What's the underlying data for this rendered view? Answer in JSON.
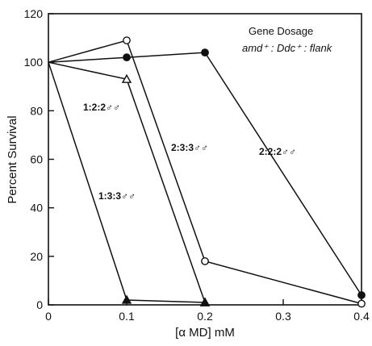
{
  "chart_data": {
    "type": "line",
    "title": "",
    "xlabel": "[α MD] mM",
    "ylabel": "Percent Survival",
    "xlim": [
      0,
      0.4
    ],
    "ylim": [
      0,
      120
    ],
    "x_ticks": [
      0,
      0.1,
      0.2,
      0.3,
      0.4
    ],
    "x_tick_labels": [
      "0",
      "0.1",
      "0.2",
      "0.3",
      "0.4"
    ],
    "y_ticks": [
      0,
      20,
      40,
      60,
      80,
      100,
      120
    ],
    "y_tick_labels": [
      "0",
      "20",
      "40",
      "60",
      "80",
      "100",
      "120"
    ],
    "grid": false,
    "legend": {
      "title": "Gene Dosage",
      "subtitle": "amd⁺ : Ddc⁺ : flank",
      "placement": "top-right"
    },
    "series": [
      {
        "name": "2:2:2♂♂",
        "marker": "filled-circle",
        "x": [
          0,
          0.1,
          0.2,
          0.4
        ],
        "y": [
          100,
          102,
          104,
          4
        ]
      },
      {
        "name": "2:3:3♂♂",
        "marker": "open-circle",
        "x": [
          0,
          0.1,
          0.2,
          0.4
        ],
        "y": [
          100,
          109,
          18,
          0.5
        ]
      },
      {
        "name": "1:2:2♂♂",
        "marker": "open-triangle",
        "x": [
          0,
          0.1,
          0.2
        ],
        "y": [
          100,
          93,
          1
        ]
      },
      {
        "name": "1:3:3♂♂",
        "marker": "filled-triangle",
        "x": [
          0,
          0.1,
          0.2
        ],
        "y": [
          100,
          2,
          1
        ]
      }
    ]
  }
}
